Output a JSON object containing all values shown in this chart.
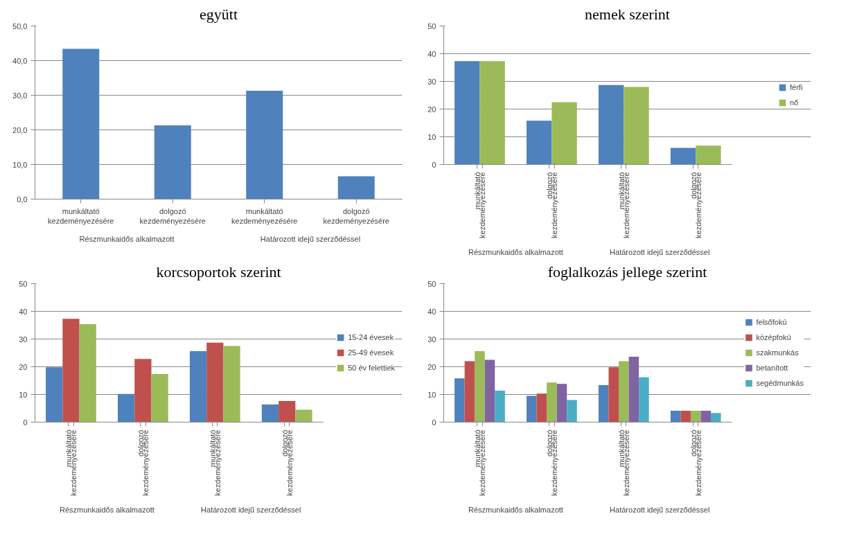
{
  "chart_data": [
    {
      "type": "bar",
      "title": "együtt",
      "categories": [
        "munkáltató kezdeményezésére",
        "dolgozó kezdeményezésére",
        "munkáltató kezdeményezésére",
        "dolgozó kezdeményezésére"
      ],
      "annotations": [
        "Részmunkaidős alkalmazott",
        "Határozott idejű szerződéssel"
      ],
      "series": [
        {
          "color": "#4f81bd",
          "values": [
            43.4,
            21.3,
            31.3,
            6.6
          ]
        }
      ],
      "ylim": [
        0,
        50
      ],
      "yticks": [
        {
          "value": 0,
          "label": "0,0"
        },
        {
          "value": 10,
          "label": "10,0"
        },
        {
          "value": 20,
          "label": "20,0"
        },
        {
          "value": 30,
          "label": "30,0"
        },
        {
          "value": 40,
          "label": "40,0"
        },
        {
          "value": 50,
          "label": "50,0"
        }
      ],
      "grid": "y",
      "legend": false
    },
    {
      "type": "bar",
      "title": "nemek szerint",
      "categories": [
        "munkáltató kezdeményezésére",
        "dolgozó kezdeményezésére",
        "munkáltató kezdeményezésére",
        "dolgozó kezdeményezésére"
      ],
      "annotations": [
        "Részmunkaidős alkalmazott",
        "Határozott idejű szerződéssel"
      ],
      "series": [
        {
          "name": "férfi",
          "color": "#4f81bd",
          "values": [
            37.3,
            15.8,
            28.7,
            6.0
          ]
        },
        {
          "name": "nő",
          "color": "#9bbb59",
          "values": [
            37.3,
            22.5,
            28.0,
            6.8
          ]
        }
      ],
      "ylim": [
        0,
        50
      ],
      "yticks": [
        0,
        10,
        20,
        30,
        40,
        50
      ],
      "grid": "y",
      "legend": "right"
    },
    {
      "type": "bar",
      "title": "korcsoportok szerint",
      "categories": [
        "munkáltató kezdeményezésére",
        "dolgozó kezdeményezésére",
        "munkáltató kezdeményezésére",
        "dolgozó kezdeményezésére"
      ],
      "annotations": [
        "Részmunkaidős alkalmazott",
        "Határozott idejű szerződéssel"
      ],
      "series": [
        {
          "name": "15-24 évesek",
          "color": "#4f81bd",
          "values": [
            19.8,
            10.2,
            25.6,
            6.4
          ]
        },
        {
          "name": "25-49 évesek",
          "color": "#c0504d",
          "values": [
            37.3,
            22.8,
            28.7,
            7.6
          ]
        },
        {
          "name": "50 év felettiek",
          "color": "#9bbb59",
          "values": [
            35.4,
            17.4,
            27.5,
            4.5
          ]
        }
      ],
      "ylim": [
        0,
        50
      ],
      "yticks": [
        0,
        10,
        20,
        30,
        40,
        50
      ],
      "grid": "y",
      "legend": "right"
    },
    {
      "type": "bar",
      "title": "foglalkozás jellege szerint",
      "categories": [
        "munkáltató kezdeményezésére",
        "dolgozó kezdeményezésére",
        "munkáltató kezdeményezésére",
        "dolgozó kezdeményezésére"
      ],
      "annotations": [
        "Részmunkaidős alkalmazott",
        "Határozott idejű szerződéssel"
      ],
      "series": [
        {
          "name": "felsőfokú",
          "color": "#4f81bd",
          "values": [
            15.8,
            9.5,
            13.4,
            4.1
          ]
        },
        {
          "name": "középfokú",
          "color": "#c0504d",
          "values": [
            22.0,
            10.3,
            19.8,
            4.1
          ]
        },
        {
          "name": "szakmunkás",
          "color": "#9bbb59",
          "values": [
            25.6,
            14.3,
            22.0,
            4.1
          ]
        },
        {
          "name": "betanított",
          "color": "#8064a2",
          "values": [
            22.5,
            13.8,
            23.6,
            4.1
          ]
        },
        {
          "name": "segédmunkás",
          "color": "#4bacc6",
          "values": [
            11.4,
            8.0,
            16.2,
            3.3
          ]
        }
      ],
      "ylim": [
        0,
        50
      ],
      "yticks": [
        0,
        10,
        20,
        30,
        40,
        50
      ],
      "grid": "y",
      "legend": "right"
    }
  ]
}
